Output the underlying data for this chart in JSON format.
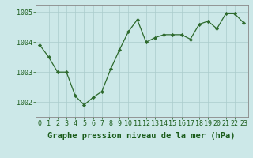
{
  "x": [
    0,
    1,
    2,
    3,
    4,
    5,
    6,
    7,
    8,
    9,
    10,
    11,
    12,
    13,
    14,
    15,
    16,
    17,
    18,
    19,
    20,
    21,
    22,
    23
  ],
  "y": [
    1003.9,
    1003.5,
    1003.0,
    1003.0,
    1002.2,
    1001.9,
    1002.15,
    1002.35,
    1003.1,
    1003.75,
    1004.35,
    1004.75,
    1004.0,
    1004.15,
    1004.25,
    1004.25,
    1004.25,
    1004.1,
    1004.6,
    1004.7,
    1004.45,
    1004.95,
    1004.95,
    1004.65
  ],
  "line_color": "#2d6a2d",
  "marker_color": "#2d6a2d",
  "bg_color": "#cce8e8",
  "grid_color": "#aacccc",
  "xlabel": "Graphe pression niveau de la mer (hPa)",
  "ylim": [
    1001.5,
    1005.25
  ],
  "yticks": [
    1002,
    1003,
    1004,
    1005
  ],
  "xticks": [
    0,
    1,
    2,
    3,
    4,
    5,
    6,
    7,
    8,
    9,
    10,
    11,
    12,
    13,
    14,
    15,
    16,
    17,
    18,
    19,
    20,
    21,
    22,
    23
  ],
  "xlabel_fontsize": 7.5,
  "tick_fontsize": 6.0,
  "label_color": "#1a5c1a",
  "spine_color": "#888888"
}
